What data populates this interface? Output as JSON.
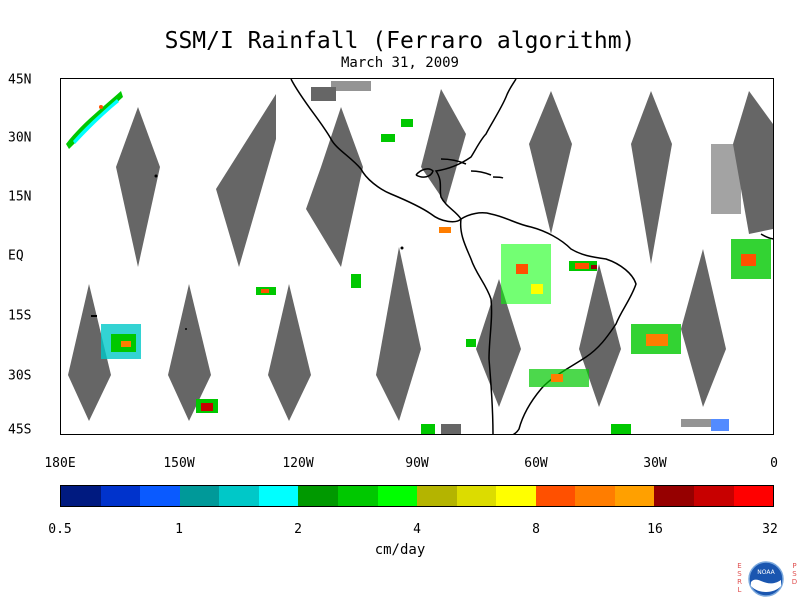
{
  "title": "SSM/I Rainfall (Ferraro algorithm)",
  "subtitle": "March 31, 2009",
  "lat_labels": [
    "45N",
    "30N",
    "15N",
    "EQ",
    "15S",
    "30S",
    "45S"
  ],
  "lon_labels": [
    "180E",
    "150W",
    "120W",
    "90W",
    "60W",
    "30W",
    "0"
  ],
  "colorbar": {
    "colors": [
      "#001a80",
      "#0033cc",
      "#0a5aff",
      "#009999",
      "#00c8c8",
      "#00ffff",
      "#009900",
      "#00c800",
      "#00ff00",
      "#b4b400",
      "#dcdc00",
      "#ffff00",
      "#ff5000",
      "#ff7d00",
      "#ffa000",
      "#960000",
      "#c80000",
      "#ff0000"
    ],
    "tick_labels": [
      "0.5",
      "1",
      "2",
      "4",
      "8",
      "16",
      "32"
    ],
    "unit": "cm/day"
  },
  "logo": {
    "left_letters": "ESRL",
    "right_letters": "PSD",
    "center_text": "NOAA"
  }
}
